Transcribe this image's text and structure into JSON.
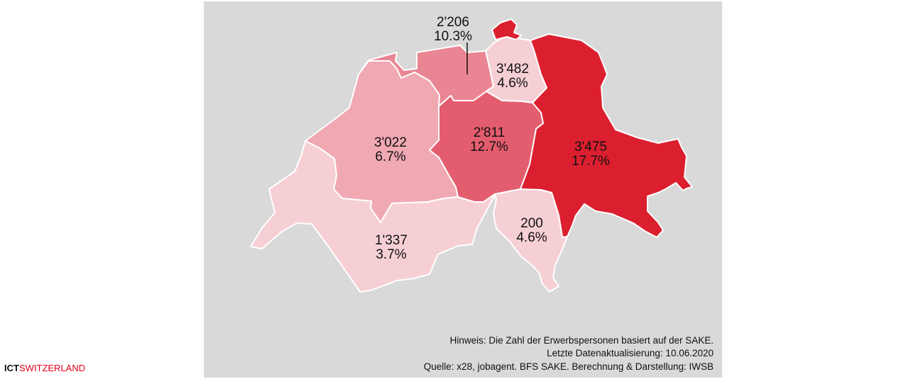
{
  "map": {
    "colors": {
      "background": "#d9d9d9",
      "border": "#ffffff",
      "shade_1": "#f6cfd4",
      "shade_2": "#f0a8b2",
      "shade_3": "#ea8593",
      "shade_4": "#e45d6e",
      "shade_5": "#dc1f2f"
    },
    "regions": [
      {
        "id": "genferseeregion",
        "count": "1'337",
        "share": "3.7%",
        "fill_key": "shade_1"
      },
      {
        "id": "espace-mittelland",
        "count": "3'022",
        "share": "6.7%",
        "fill_key": "shade_2"
      },
      {
        "id": "nordwestschweiz",
        "count": "2'206",
        "share": "10.3%",
        "fill_key": "shade_3"
      },
      {
        "id": "zuerich",
        "count": "3'482",
        "share": "4.6%",
        "fill_key": "shade_1"
      },
      {
        "id": "zentralschweiz",
        "count": "2'811",
        "share": "12.7%",
        "fill_key": "shade_4"
      },
      {
        "id": "ostschweiz",
        "count": "3'475",
        "share": "17.7%",
        "fill_key": "shade_5"
      },
      {
        "id": "tessin",
        "count": "200",
        "share": "4.6%",
        "fill_key": "shade_1"
      }
    ]
  },
  "notes": {
    "line1": "Hinweis: Die Zahl der Erwerbspersonen basiert auf der SAKE.",
    "line2": "Letzte Datenaktualisierung: 10.06.2020",
    "line3": "Quelle: x28, jobagent. BFS SAKE. Berechnung & Darstellung: IWSB"
  },
  "logo": {
    "part1": "ICT",
    "part2": "SWITZERLAND"
  }
}
